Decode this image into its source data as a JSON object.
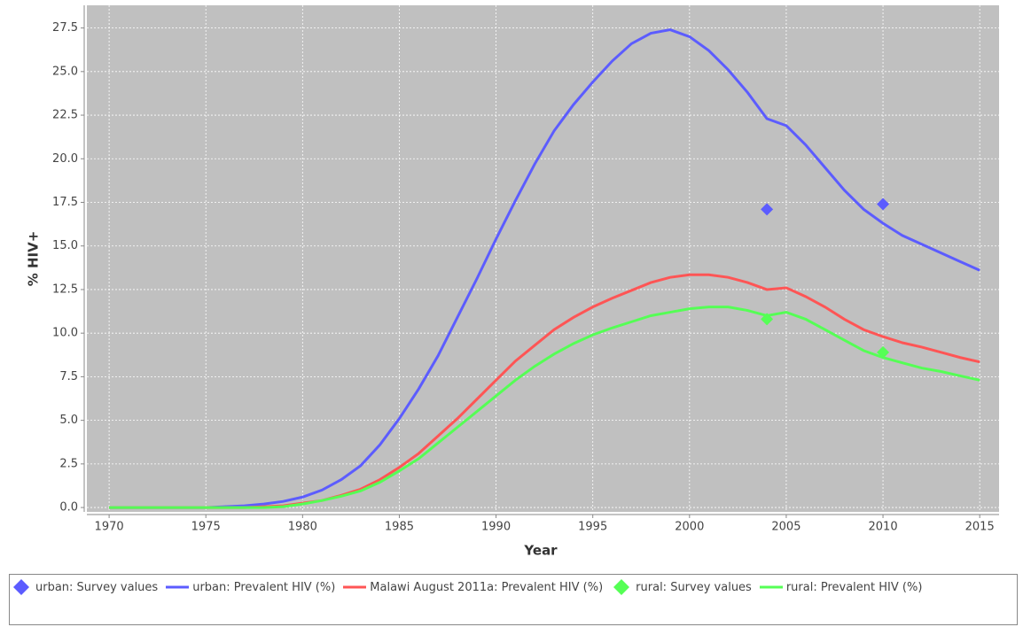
{
  "chart_data": {
    "type": "line",
    "x_label": "Year",
    "y_label": "% HIV+",
    "x": [
      1970,
      1971,
      1972,
      1973,
      1974,
      1975,
      1976,
      1977,
      1978,
      1979,
      1980,
      1981,
      1982,
      1983,
      1984,
      1985,
      1986,
      1987,
      1988,
      1989,
      1990,
      1991,
      1992,
      1993,
      1994,
      1995,
      1996,
      1997,
      1998,
      1999,
      2000,
      2001,
      2002,
      2003,
      2004,
      2005,
      2006,
      2007,
      2008,
      2009,
      2010,
      2011,
      2012,
      2013,
      2014,
      2015
    ],
    "xlim": [
      1968.85,
      2016.0
    ],
    "xticks": [
      1970,
      1975,
      1980,
      1985,
      1990,
      1995,
      2000,
      2005,
      2010,
      2015
    ],
    "ylim": [
      -0.25,
      28.8
    ],
    "yticks": [
      {
        "value": 0,
        "label": "0.0"
      },
      {
        "value": 2.5,
        "label": "2.5"
      },
      {
        "value": 5,
        "label": "5.0"
      },
      {
        "value": 7.5,
        "label": "7.5"
      },
      {
        "value": 10,
        "label": "10.0"
      },
      {
        "value": 12.5,
        "label": "12.5"
      },
      {
        "value": 15,
        "label": "15.0"
      },
      {
        "value": 17.5,
        "label": "17.5"
      },
      {
        "value": 20,
        "label": "20.0"
      },
      {
        "value": 22.5,
        "label": "22.5"
      },
      {
        "value": 25,
        "label": "25.0"
      },
      {
        "value": 27.5,
        "label": "27.5"
      }
    ],
    "grid": true,
    "series": [
      {
        "name": "urban: Survey values",
        "color": "#5c5cff",
        "style": "marker",
        "x": [
          2004,
          2010
        ],
        "values": [
          17.1,
          17.4
        ]
      },
      {
        "name": "urban: Prevalent HIV (%)",
        "color": "#5c5cff",
        "style": "line",
        "values": [
          0,
          0,
          0,
          0,
          0,
          0,
          0.05,
          0.1,
          0.2,
          0.35,
          0.6,
          1.0,
          1.6,
          2.4,
          3.6,
          5.1,
          6.8,
          8.7,
          10.9,
          13.1,
          15.4,
          17.6,
          19.7,
          21.6,
          23.1,
          24.4,
          25.6,
          26.6,
          27.2,
          27.4,
          27.0,
          26.2,
          25.1,
          23.8,
          22.3,
          21.9,
          20.8,
          19.5,
          18.2,
          17.1,
          16.3,
          15.6,
          15.1,
          14.6,
          14.1,
          13.6
        ]
      },
      {
        "name": "Malawi August 2011a: Prevalent HIV (%)",
        "color": "#ff5555",
        "style": "line",
        "values": [
          0,
          0,
          0,
          0,
          0,
          0,
          0,
          0,
          0.05,
          0.1,
          0.25,
          0.4,
          0.7,
          1.05,
          1.6,
          2.3,
          3.1,
          4.1,
          5.1,
          6.2,
          7.3,
          8.4,
          9.3,
          10.2,
          10.9,
          11.5,
          12.0,
          12.45,
          12.9,
          13.2,
          13.35,
          13.35,
          13.2,
          12.9,
          12.5,
          12.6,
          12.1,
          11.5,
          10.8,
          10.2,
          9.8,
          9.45,
          9.2,
          8.9,
          8.6,
          8.35
        ]
      },
      {
        "name": "rural: Survey values",
        "color": "#55ff55",
        "style": "marker",
        "x": [
          2004,
          2010
        ],
        "values": [
          10.8,
          8.9
        ]
      },
      {
        "name": "rural: Prevalent HIV (%)",
        "color": "#55ff55",
        "style": "line",
        "values": [
          0,
          0,
          0,
          0,
          0,
          0,
          0,
          0,
          0,
          0.05,
          0.2,
          0.4,
          0.65,
          0.95,
          1.45,
          2.1,
          2.8,
          3.7,
          4.6,
          5.5,
          6.4,
          7.3,
          8.1,
          8.8,
          9.4,
          9.9,
          10.3,
          10.65,
          11.0,
          11.2,
          11.4,
          11.5,
          11.5,
          11.3,
          11.0,
          11.2,
          10.8,
          10.2,
          9.6,
          9.0,
          8.6,
          8.3,
          8.0,
          7.8,
          7.55,
          7.3
        ]
      }
    ]
  }
}
